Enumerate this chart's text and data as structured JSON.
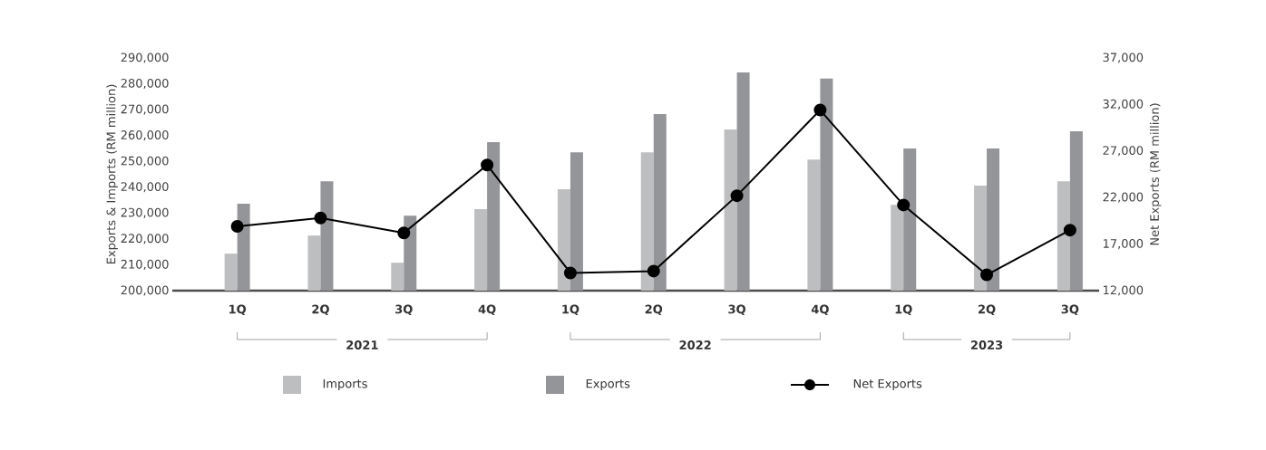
{
  "chart_data": {
    "type": "bar",
    "categories": [
      "1Q",
      "2Q",
      "3Q",
      "4Q",
      "1Q",
      "2Q",
      "3Q",
      "4Q",
      "1Q",
      "2Q",
      "3Q"
    ],
    "series": [
      {
        "name": "Imports",
        "color": "#bdbec0",
        "values": [
          214300,
          221300,
          210800,
          231500,
          239200,
          253500,
          262300,
          250700,
          233200,
          240600,
          242300
        ]
      },
      {
        "name": "Exports",
        "color": "#939598",
        "values": [
          233600,
          242300,
          229000,
          257400,
          253500,
          268300,
          284400,
          282000,
          255000,
          255000,
          261600
        ]
      },
      {
        "name": "Net Exports",
        "type": "line",
        "axis": "y2",
        "color": "#000000",
        "marker": "circle",
        "values": [
          18900,
          19800,
          18200,
          25500,
          13900,
          14100,
          22200,
          31400,
          21200,
          13700,
          18500
        ]
      }
    ],
    "ylim": [
      200000,
      290000
    ],
    "yticks": [
      {
        "value": 200000,
        "label": "200,000"
      },
      {
        "value": 210000,
        "label": "210,000"
      },
      {
        "value": 220000,
        "label": "220,000"
      },
      {
        "value": 230000,
        "label": "230,000"
      },
      {
        "value": 240000,
        "label": "240,000"
      },
      {
        "value": 250000,
        "label": "250,000"
      },
      {
        "value": 260000,
        "label": "260,000"
      },
      {
        "value": 270000,
        "label": "270,000"
      },
      {
        "value": 280000,
        "label": "280,000"
      },
      {
        "value": 290000,
        "label": "290,000"
      }
    ],
    "y2lim": [
      12000,
      37000
    ],
    "y2ticks": [
      {
        "value": 12000,
        "label": "12,000"
      },
      {
        "value": 17000,
        "label": "17,000"
      },
      {
        "value": 22000,
        "label": "22,000"
      },
      {
        "value": 27000,
        "label": "27,000"
      },
      {
        "value": 32000,
        "label": "32,000"
      },
      {
        "value": 37000,
        "label": "37,000"
      }
    ],
    "ylabel": "Exports & Imports (RM million)",
    "y2label": "Net Exports (RM million)",
    "annotations": [
      "2021",
      "2022",
      "2023"
    ],
    "legend": "bottom"
  }
}
